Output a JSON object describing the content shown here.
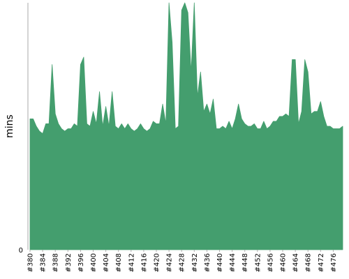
{
  "chart_data": {
    "type": "area",
    "title": "",
    "xlabel": "",
    "ylabel": "mins",
    "y_ticks": [
      {
        "value": 0,
        "label": "0"
      }
    ],
    "ylim": [
      0,
      100
    ],
    "xlim": [
      380,
      479
    ],
    "grid": false,
    "legend": "none",
    "fill_color": "#449E6E",
    "x_ticks": [
      "#380",
      "#384",
      "#388",
      "#392",
      "#396",
      "#400",
      "#404",
      "#408",
      "#412",
      "#416",
      "#420",
      "#424",
      "#428",
      "#432",
      "#436",
      "#440",
      "#444",
      "#448",
      "#452",
      "#456",
      "#460",
      "#464",
      "#468",
      "#472",
      "#476"
    ],
    "x": [
      380,
      381,
      382,
      383,
      384,
      385,
      386,
      387,
      388,
      389,
      390,
      391,
      392,
      393,
      394,
      395,
      396,
      397,
      398,
      399,
      400,
      401,
      402,
      403,
      404,
      405,
      406,
      407,
      408,
      409,
      410,
      411,
      412,
      413,
      414,
      415,
      416,
      417,
      418,
      419,
      420,
      421,
      422,
      423,
      424,
      425,
      426,
      427,
      428,
      429,
      430,
      431,
      432,
      433,
      434,
      435,
      436,
      437,
      438,
      439,
      440,
      441,
      442,
      443,
      444,
      445,
      446,
      447,
      448,
      449,
      450,
      451,
      452,
      453,
      454,
      455,
      456,
      457,
      458,
      459,
      460,
      461,
      462,
      463,
      464,
      465,
      466,
      467,
      468,
      469,
      470,
      471,
      472,
      473,
      474,
      475,
      476,
      477,
      478,
      479
    ],
    "values": [
      53,
      53,
      50,
      48,
      47,
      51,
      51,
      75,
      55,
      51,
      49,
      48,
      49,
      49,
      51,
      50,
      75,
      78,
      51,
      50,
      56,
      51,
      64,
      50,
      58,
      50,
      64,
      50,
      49,
      51,
      49,
      51,
      49,
      48,
      49,
      51,
      49,
      48,
      49,
      52,
      51,
      51,
      59,
      51,
      100,
      84,
      49,
      50,
      97,
      100,
      96,
      72,
      100,
      62,
      72,
      56,
      59,
      55,
      61,
      49,
      49,
      50,
      49,
      52,
      49,
      53,
      59,
      53,
      51,
      50,
      50,
      51,
      49,
      49,
      52,
      49,
      50,
      52,
      52,
      54,
      54,
      55,
      54,
      77,
      77,
      51,
      56,
      77,
      72,
      55,
      56,
      56,
      60,
      54,
      50,
      50,
      49,
      49,
      49,
      50
    ]
  }
}
